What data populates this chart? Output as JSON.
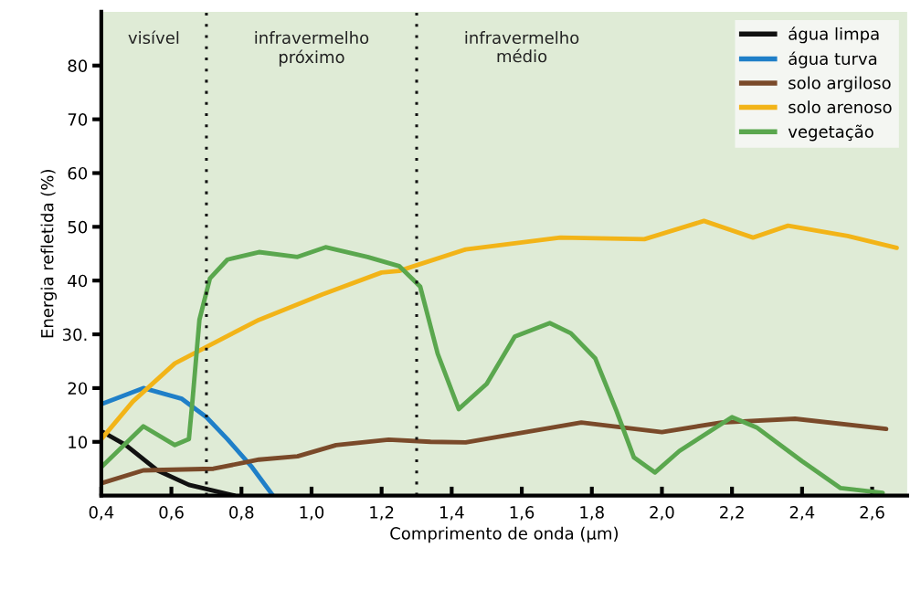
{
  "chart_data": {
    "type": "line",
    "xlabel": "Comprimento de onda (μm)",
    "ylabel": "Energia refletida (%)",
    "xlim": [
      0.4,
      2.7
    ],
    "ylim": [
      0,
      90
    ],
    "xticks": [
      {
        "value": 0.4,
        "label": "0,4"
      },
      {
        "value": 0.6,
        "label": "0,6"
      },
      {
        "value": 0.8,
        "label": "0,8"
      },
      {
        "value": 1.0,
        "label": "1,0"
      },
      {
        "value": 1.2,
        "label": "1,2"
      },
      {
        "value": 1.4,
        "label": "1,4"
      },
      {
        "value": 1.6,
        "label": "1,6"
      },
      {
        "value": 1.8,
        "label": "1,8"
      },
      {
        "value": 2.0,
        "label": "2,0"
      },
      {
        "value": 2.2,
        "label": "2,2"
      },
      {
        "value": 2.4,
        "label": "2,4"
      },
      {
        "value": 2.6,
        "label": "2,6"
      }
    ],
    "yticks": [
      10,
      20,
      {
        "value": 30,
        "label": "30."
      },
      40,
      50,
      60,
      70,
      80
    ],
    "grid": false,
    "legend": "top right",
    "marker": "none",
    "line_style": "solid",
    "ref_lines": [
      {
        "axis": "x",
        "value": 0.7,
        "line_style": "dotted",
        "color": "#111111"
      },
      {
        "axis": "x",
        "value": 1.3,
        "line_style": "dotted",
        "color": "#111111"
      }
    ],
    "annotations": [
      "visível",
      "infravermelho\npróximo",
      "infravermelho\nmédio"
    ],
    "series": [
      {
        "name": "água limpa",
        "color": "#111111",
        "x": [
          0.4,
          0.47,
          0.56,
          0.65,
          0.76,
          0.78
        ],
        "values": [
          12,
          9.4,
          4.7,
          2,
          0.3,
          0
        ]
      },
      {
        "name": "água turva",
        "color": "#1f7fc8",
        "x": [
          0.4,
          0.52,
          0.63,
          0.7,
          0.76,
          0.83,
          0.89
        ],
        "values": [
          17,
          20,
          18,
          14.6,
          10.5,
          5.3,
          0
        ]
      },
      {
        "name": "solo argiloso",
        "color": "#7a4a2a",
        "x": [
          0.4,
          0.52,
          0.72,
          0.85,
          0.96,
          1.07,
          1.22,
          1.34,
          1.44,
          1.77,
          2.0,
          2.17,
          2.38,
          2.64
        ],
        "values": [
          2.3,
          4.7,
          5,
          6.7,
          7.3,
          9.4,
          10.4,
          10,
          9.9,
          13.6,
          11.8,
          13.6,
          14.3,
          12.4
        ]
      },
      {
        "name": "solo arenoso",
        "color": "#f2b418",
        "x": [
          0.4,
          0.49,
          0.61,
          0.71,
          0.85,
          1.03,
          1.2,
          1.25,
          1.44,
          1.71,
          1.95,
          2.12,
          2.26,
          2.36,
          2.53,
          2.67
        ],
        "values": [
          10.5,
          17.5,
          24.6,
          28,
          32.7,
          37.4,
          41.5,
          41.8,
          45.8,
          48,
          47.7,
          51.1,
          48,
          50.2,
          48.3,
          46.1
        ]
      },
      {
        "name": "vegetação",
        "color": "#5aa74e",
        "x": [
          0.4,
          0.52,
          0.61,
          0.65,
          0.66,
          0.68,
          0.71,
          0.76,
          0.85,
          0.96,
          1.04,
          1.16,
          1.25,
          1.31,
          1.36,
          1.42,
          1.5,
          1.58,
          1.68,
          1.74,
          1.81,
          1.87,
          1.92,
          1.98,
          2.05,
          2.2,
          2.27,
          2.4,
          2.51,
          2.63
        ],
        "values": [
          5.3,
          12.9,
          9.4,
          10.5,
          17.5,
          32.7,
          40.4,
          43.9,
          45.3,
          44.4,
          46.2,
          44.4,
          42.7,
          38.9,
          26.4,
          16.1,
          20.8,
          29.6,
          32.1,
          30.2,
          25.5,
          15.8,
          7.1,
          4.3,
          8.3,
          14.6,
          12.7,
          6.4,
          1.4,
          0.5
        ]
      }
    ]
  }
}
